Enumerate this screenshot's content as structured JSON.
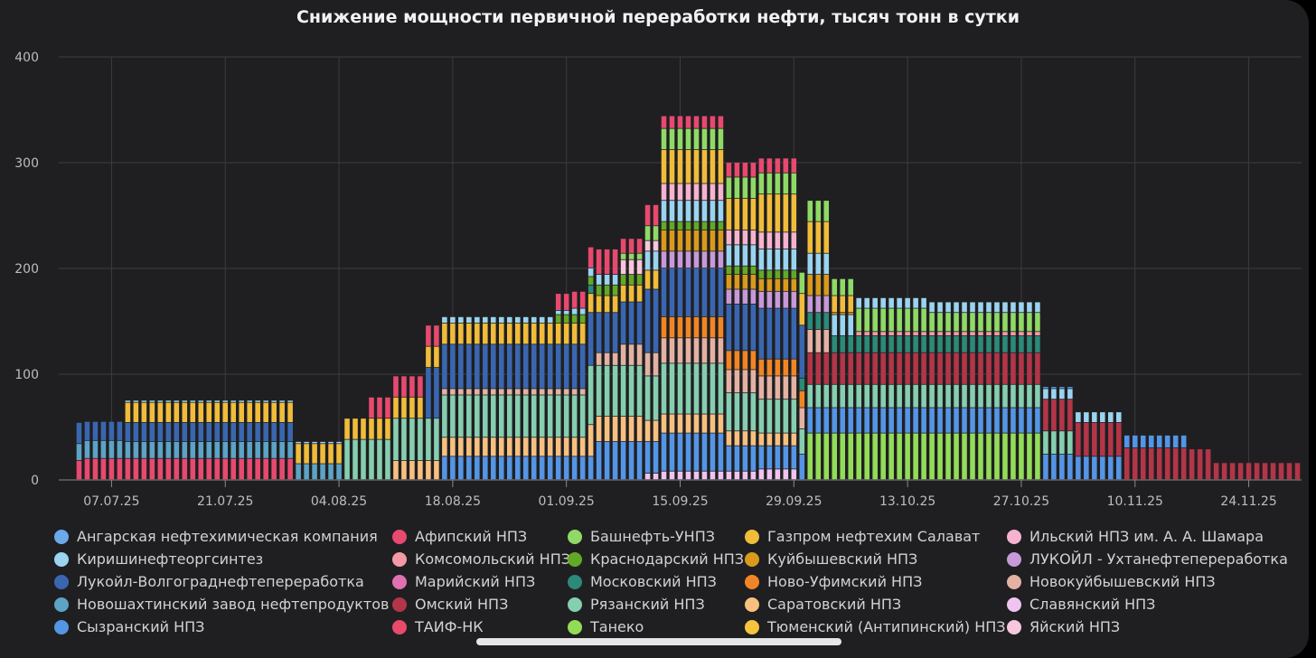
{
  "chart_data": {
    "type": "bar",
    "stacked": true,
    "title": "Снижение мощности первичной переработки нефти, тысяч тонн в сутки",
    "xlabel": "",
    "ylabel": "",
    "ylim": [
      0,
      400
    ],
    "yticks": [
      "0",
      "100",
      "200",
      "300",
      "400"
    ],
    "xticks": [
      "07.07.25",
      "21.07.25",
      "04.08.25",
      "18.08.25",
      "01.09.25",
      "15.09.25",
      "29.09.25",
      "13.10.25",
      "27.10.25",
      "10.11.25",
      "24.11.25"
    ],
    "x_start": "2025-07-01",
    "x_end": "2025-11-30",
    "grid": true,
    "legend_position": "bottom",
    "series": [
      {
        "name": "Ангарская нефтехимическая компания",
        "color": "#6aa9ea"
      },
      {
        "name": "Афипский НПЗ",
        "color": "#e8496f"
      },
      {
        "name": "Башнефть-УНПЗ",
        "color": "#8fda66"
      },
      {
        "name": "Газпром нефтехим Салават",
        "color": "#f0bc3a"
      },
      {
        "name": "Ильский НПЗ им. А. А. Шамара",
        "color": "#f6b3d0"
      },
      {
        "name": "Киришинефтеоргсинтез",
        "color": "#9ad4f0"
      },
      {
        "name": "Комсомольский НПЗ",
        "color": "#f49aa6"
      },
      {
        "name": "Краснодарский НПЗ",
        "color": "#64a926"
      },
      {
        "name": "Куйбышевский НПЗ",
        "color": "#d99a1b"
      },
      {
        "name": "ЛУКОЙЛ - Ухтанефтепереработка",
        "color": "#c799d8"
      },
      {
        "name": "Лукойл-Волгограднефтепереработка",
        "color": "#3a66b0"
      },
      {
        "name": "Марийский НПЗ",
        "color": "#e070b2"
      },
      {
        "name": "Московский НПЗ",
        "color": "#2b8a78"
      },
      {
        "name": "Ново-Уфимский НПЗ",
        "color": "#f18525"
      },
      {
        "name": "Новокуйбышевский НПЗ",
        "color": "#e3b2a3"
      },
      {
        "name": "Новошахтинский завод нефтепродуктов",
        "color": "#5ca3c6"
      },
      {
        "name": "Омский НПЗ",
        "color": "#b33548"
      },
      {
        "name": "Рязанский НПЗ",
        "color": "#86ceb0"
      },
      {
        "name": "Саратовский НПЗ",
        "color": "#f8c080"
      },
      {
        "name": "Славянский НПЗ",
        "color": "#efc4f0"
      },
      {
        "name": "Сызранский НПЗ",
        "color": "#5495e6"
      },
      {
        "name": "ТАИФ-НК",
        "color": "#e84a6c"
      },
      {
        "name": "Танеко",
        "color": "#93dc58"
      },
      {
        "name": "Тюменский (Антипинский) НПЗ",
        "color": "#f6c33e"
      },
      {
        "name": "Яйский НПЗ",
        "color": "#f8c6dd"
      }
    ],
    "periods": [
      {
        "from": "2025-07-03",
        "to": "2025-07-03",
        "stack": [
          [
            "Афипский НПЗ",
            18
          ],
          [
            "Новошахтинский завод нефтепродуктов",
            16
          ],
          [
            "Лукойл-Волгограднефтепереработка",
            20
          ]
        ]
      },
      {
        "from": "2025-07-04",
        "to": "2025-07-08",
        "stack": [
          [
            "Афипский НПЗ",
            20
          ],
          [
            "Новошахтинский завод нефтепродуктов",
            17
          ],
          [
            "Лукойл-Волгограднефтепереработка",
            18
          ]
        ]
      },
      {
        "from": "2025-07-09",
        "to": "2025-07-29",
        "stack": [
          [
            "Афипский НПЗ",
            20
          ],
          [
            "Новошахтинский завод нефтепродуктов",
            16
          ],
          [
            "Лукойл-Волгограднефтепереработка",
            18
          ],
          [
            "Газпром нефтехим Салават",
            19
          ],
          [
            "Киришинефтеоргсинтез",
            2
          ]
        ]
      },
      {
        "from": "2025-07-30",
        "to": "2025-08-04",
        "stack": [
          [
            "Новошахтинский завод нефтепродуктов",
            15
          ],
          [
            "Газпром нефтехим Салават",
            19
          ],
          [
            "Киришинефтеоргсинтез",
            2
          ]
        ]
      },
      {
        "from": "2025-08-05",
        "to": "2025-08-07",
        "stack": [
          [
            "Рязанский НПЗ",
            38
          ],
          [
            "Газпром нефтехим Салават",
            20
          ]
        ]
      },
      {
        "from": "2025-08-08",
        "to": "2025-08-10",
        "stack": [
          [
            "Рязанский НПЗ",
            38
          ],
          [
            "Газпром нефтехим Салават",
            20
          ],
          [
            "Афипский НПЗ",
            20
          ]
        ]
      },
      {
        "from": "2025-08-11",
        "to": "2025-08-14",
        "stack": [
          [
            "Саратовский НПЗ",
            18
          ],
          [
            "Рязанский НПЗ",
            40
          ],
          [
            "Газпром нефтехим Салават",
            20
          ],
          [
            "Афипский НПЗ",
            20
          ]
        ]
      },
      {
        "from": "2025-08-15",
        "to": "2025-08-16",
        "stack": [
          [
            "Саратовский НПЗ",
            18
          ],
          [
            "Рязанский НПЗ",
            40
          ],
          [
            "Лукойл-Волгограднефтепереработка",
            48
          ],
          [
            "Газпром нефтехим Салават",
            20
          ],
          [
            "Афипский НПЗ",
            20
          ]
        ]
      },
      {
        "from": "2025-08-17",
        "to": "2025-08-30",
        "stack": [
          [
            "Сызранский НПЗ",
            22
          ],
          [
            "Саратовский НПЗ",
            18
          ],
          [
            "Рязанский НПЗ",
            40
          ],
          [
            "Новокуйбышевский НПЗ",
            6
          ],
          [
            "Лукойл-Волгограднефтепереработка",
            42
          ],
          [
            "Газпром нефтехим Салават",
            20
          ],
          [
            "Киришинефтеоргсинтез",
            6
          ]
        ]
      },
      {
        "from": "2025-08-31",
        "to": "2025-09-01",
        "stack": [
          [
            "Сызранский НПЗ",
            22
          ],
          [
            "Саратовский НПЗ",
            18
          ],
          [
            "Рязанский НПЗ",
            40
          ],
          [
            "Новокуйбышевский НПЗ",
            6
          ],
          [
            "Лукойл-Волгограднефтепереработка",
            42
          ],
          [
            "Газпром нефтехим Салават",
            20
          ],
          [
            "Краснодарский НПЗ",
            8
          ],
          [
            "Киришинефтеоргсинтез",
            4
          ],
          [
            "Афипский НПЗ",
            16
          ]
        ]
      },
      {
        "from": "2025-09-02",
        "to": "2025-09-03",
        "stack": [
          [
            "Сызранский НПЗ",
            22
          ],
          [
            "Саратовский НПЗ",
            18
          ],
          [
            "Рязанский НПЗ",
            40
          ],
          [
            "Новокуйбышевский НПЗ",
            6
          ],
          [
            "Лукойл-Волгограднефтепереработка",
            42
          ],
          [
            "Газпром нефтехим Салават",
            20
          ],
          [
            "Краснодарский НПЗ",
            8
          ],
          [
            "Киришинефтеоргсинтез",
            6
          ],
          [
            "Афипский НПЗ",
            16
          ]
        ]
      },
      {
        "from": "2025-09-04",
        "to": "2025-09-04",
        "stack": [
          [
            "Сызранский НПЗ",
            22
          ],
          [
            "Саратовский НПЗ",
            30
          ],
          [
            "Рязанский НПЗ",
            56
          ],
          [
            "Лукойл-Волгограднефтепереработка",
            50
          ],
          [
            "Газпром нефтехим Салават",
            18
          ],
          [
            "Московский НПЗ",
            8
          ],
          [
            "Краснодарский НПЗ",
            8
          ],
          [
            "Киришинефтеоргсинтез",
            8
          ],
          [
            "Афипский НПЗ",
            20
          ]
        ]
      },
      {
        "from": "2025-09-05",
        "to": "2025-09-07",
        "stack": [
          [
            "Сызранский НПЗ",
            36
          ],
          [
            "Саратовский НПЗ",
            24
          ],
          [
            "Рязанский НПЗ",
            48
          ],
          [
            "Новокуйбышевский НПЗ",
            12
          ],
          [
            "Лукойл-Волгограднефтепереработка",
            38
          ],
          [
            "Газпром нефтехим Салават",
            16
          ],
          [
            "Краснодарский НПЗ",
            10
          ],
          [
            "Киришинефтеоргсинтез",
            10
          ],
          [
            "Афипский НПЗ",
            24
          ]
        ]
      },
      {
        "from": "2025-09-08",
        "to": "2025-09-10",
        "stack": [
          [
            "Сызранский НПЗ",
            36
          ],
          [
            "Саратовский НПЗ",
            24
          ],
          [
            "Рязанский НПЗ",
            48
          ],
          [
            "Новокуйбышевский НПЗ",
            20
          ],
          [
            "Лукойл-Волгограднефтепереработка",
            40
          ],
          [
            "Газпром нефтехим Салават",
            16
          ],
          [
            "Краснодарский НПЗ",
            10
          ],
          [
            "Яйский НПЗ",
            14
          ],
          [
            "Башнефть-УНПЗ",
            6
          ],
          [
            "Афипский НПЗ",
            14
          ]
        ]
      },
      {
        "from": "2025-09-11",
        "to": "2025-09-12",
        "stack": [
          [
            "Славянский НПЗ",
            6
          ],
          [
            "Сызранский НПЗ",
            30
          ],
          [
            "Саратовский НПЗ",
            20
          ],
          [
            "Рязанский НПЗ",
            42
          ],
          [
            "Новокуйбышевский НПЗ",
            22
          ],
          [
            "Лукойл-Волгограднефтепереработка",
            60
          ],
          [
            "Газпром нефтехим Салават",
            18
          ],
          [
            "Киришинефтеоргсинтез",
            18
          ],
          [
            "Яйский НПЗ",
            10
          ],
          [
            "Башнефть-УНПЗ",
            14
          ],
          [
            "Афипский НПЗ",
            20
          ]
        ]
      },
      {
        "from": "2025-09-13",
        "to": "2025-09-20",
        "stack": [
          [
            "Славянский НПЗ",
            8
          ],
          [
            "Сызранский НПЗ",
            36
          ],
          [
            "Саратовский НПЗ",
            18
          ],
          [
            "Рязанский НПЗ",
            48
          ],
          [
            "Новокуйбышевский НПЗ",
            24
          ],
          [
            "Ново-Уфимский НПЗ",
            20
          ],
          [
            "Лукойл-Волгограднефтепереработка",
            46
          ],
          [
            "ЛУКОЙЛ - Ухтанефтепереработка",
            16
          ],
          [
            "Куйбышевский НПЗ",
            20
          ],
          [
            "Краснодарский НПЗ",
            8
          ],
          [
            "Киришинефтеоргсинтез",
            20
          ],
          [
            "Ильский НПЗ им. А. А. Шамара",
            16
          ],
          [
            "Газпром нефтехим Салават",
            32
          ],
          [
            "Башнефть-УНПЗ",
            20
          ],
          [
            "Афипский НПЗ",
            12
          ]
        ]
      },
      {
        "from": "2025-09-21",
        "to": "2025-09-24",
        "stack": [
          [
            "Славянский НПЗ",
            8
          ],
          [
            "Сызранский НПЗ",
            24
          ],
          [
            "Саратовский НПЗ",
            14
          ],
          [
            "Рязанский НПЗ",
            36
          ],
          [
            "Новокуйбышевский НПЗ",
            22
          ],
          [
            "Ново-Уфимский НПЗ",
            18
          ],
          [
            "Лукойл-Волгограднефтепереработка",
            44
          ],
          [
            "ЛУКОЙЛ - Ухтанефтепереработка",
            14
          ],
          [
            "Куйбышевский НПЗ",
            14
          ],
          [
            "Краснодарский НПЗ",
            8
          ],
          [
            "Киришинефтеоргсинтез",
            20
          ],
          [
            "Ильский НПЗ им. А. А. Шамара",
            14
          ],
          [
            "Газпром нефтехим Салават",
            30
          ],
          [
            "Башнефть-УНПЗ",
            20
          ],
          [
            "Афипский НПЗ",
            14
          ]
        ]
      },
      {
        "from": "2025-09-25",
        "to": "2025-09-29",
        "stack": [
          [
            "Славянский НПЗ",
            10
          ],
          [
            "Сызранский НПЗ",
            22
          ],
          [
            "Саратовский НПЗ",
            12
          ],
          [
            "Рязанский НПЗ",
            32
          ],
          [
            "Новокуйбышевский НПЗ",
            22
          ],
          [
            "Ново-Уфимский НПЗ",
            16
          ],
          [
            "Лукойл-Волгограднефтепереработка",
            48
          ],
          [
            "ЛУКОЙЛ - Ухтанефтепереработка",
            16
          ],
          [
            "Куйбышевский НПЗ",
            12
          ],
          [
            "Краснодарский НПЗ",
            8
          ],
          [
            "Киришинефтеоргсинтез",
            20
          ],
          [
            "Ильский НПЗ им. А. А. Шамара",
            16
          ],
          [
            "Газпром нефтехим Салават",
            36
          ],
          [
            "Башнефть-УНПЗ",
            20
          ],
          [
            "Афипский НПЗ",
            14
          ]
        ]
      },
      {
        "from": "2025-09-30",
        "to": "2025-09-30",
        "stack": [
          [
            "Сызранский НПЗ",
            24
          ],
          [
            "Рязанский НПЗ",
            24
          ],
          [
            "Новокуйбышевский НПЗ",
            20
          ],
          [
            "Ново-Уфимский НПЗ",
            16
          ],
          [
            "Московский НПЗ",
            12
          ],
          [
            "Лукойл-Волгограднефтепереработка",
            50
          ],
          [
            "Газпром нефтехим Салават",
            30
          ],
          [
            "Башнефть-УНПЗ",
            20
          ]
        ]
      },
      {
        "from": "2025-10-01",
        "to": "2025-10-03",
        "stack": [
          [
            "Танеко",
            44
          ],
          [
            "Сызранский НПЗ",
            24
          ],
          [
            "Рязанский НПЗ",
            22
          ],
          [
            "Омский НПЗ",
            30
          ],
          [
            "Новокуйбышевский НПЗ",
            22
          ],
          [
            "Московский НПЗ",
            16
          ],
          [
            "ЛУКОЙЛ - Ухтанефтепереработка",
            16
          ],
          [
            "Куйбышевский НПЗ",
            20
          ],
          [
            "Киришинефтеоргсинтез",
            20
          ],
          [
            "Газпром нефтехим Салават",
            30
          ],
          [
            "Башнефть-УНПЗ",
            20
          ]
        ]
      },
      {
        "from": "2025-10-04",
        "to": "2025-10-06",
        "stack": [
          [
            "Танеко",
            44
          ],
          [
            "Сызранский НПЗ",
            24
          ],
          [
            "Рязанский НПЗ",
            22
          ],
          [
            "Омский НПЗ",
            30
          ],
          [
            "Московский НПЗ",
            16
          ],
          [
            "Киришинефтеоргсинтез",
            20
          ],
          [
            "Куйбышевский НПЗ",
            2
          ],
          [
            "Газпром нефтехим Салават",
            16
          ],
          [
            "Башнефть-УНПЗ",
            16
          ]
        ]
      },
      {
        "from": "2025-10-07",
        "to": "2025-10-15",
        "stack": [
          [
            "Танеко",
            44
          ],
          [
            "Сызранский НПЗ",
            24
          ],
          [
            "Рязанский НПЗ",
            22
          ],
          [
            "Омский НПЗ",
            30
          ],
          [
            "Московский НПЗ",
            16
          ],
          [
            "Комсомольский НПЗ",
            4
          ],
          [
            "Башнефть-УНПЗ",
            22
          ],
          [
            "Киришинефтеоргсинтез",
            10
          ]
        ]
      },
      {
        "from": "2025-10-16",
        "to": "2025-10-29",
        "stack": [
          [
            "Танеко",
            44
          ],
          [
            "Сызранский НПЗ",
            24
          ],
          [
            "Рязанский НПЗ",
            22
          ],
          [
            "Омский НПЗ",
            30
          ],
          [
            "Московский НПЗ",
            16
          ],
          [
            "Комсомольский НПЗ",
            4
          ],
          [
            "Башнефть-УНПЗ",
            18
          ],
          [
            "Киришинефтеоргсинтез",
            10
          ]
        ]
      },
      {
        "from": "2025-10-30",
        "to": "2025-11-02",
        "stack": [
          [
            "Сызранский НПЗ",
            24
          ],
          [
            "Рязанский НПЗ",
            22
          ],
          [
            "Омский НПЗ",
            30
          ],
          [
            "Киришинефтеоргсинтез",
            10
          ],
          [
            "Сызранский НПЗ",
            2
          ]
        ]
      },
      {
        "from": "2025-11-03",
        "to": "2025-11-08",
        "stack": [
          [
            "Сызранский НПЗ",
            22
          ],
          [
            "Омский НПЗ",
            32
          ],
          [
            "Киришинефтеоргсинтез",
            10
          ]
        ]
      },
      {
        "from": "2025-11-09",
        "to": "2025-11-16",
        "stack": [
          [
            "Омский НПЗ",
            30
          ],
          [
            "Сызранский НПЗ",
            12
          ]
        ]
      },
      {
        "from": "2025-11-17",
        "to": "2025-11-19",
        "stack": [
          [
            "Омский НПЗ",
            29
          ]
        ]
      },
      {
        "from": "2025-11-20",
        "to": "2025-11-30",
        "stack": [
          [
            "Омский НПЗ",
            16
          ]
        ]
      }
    ]
  }
}
